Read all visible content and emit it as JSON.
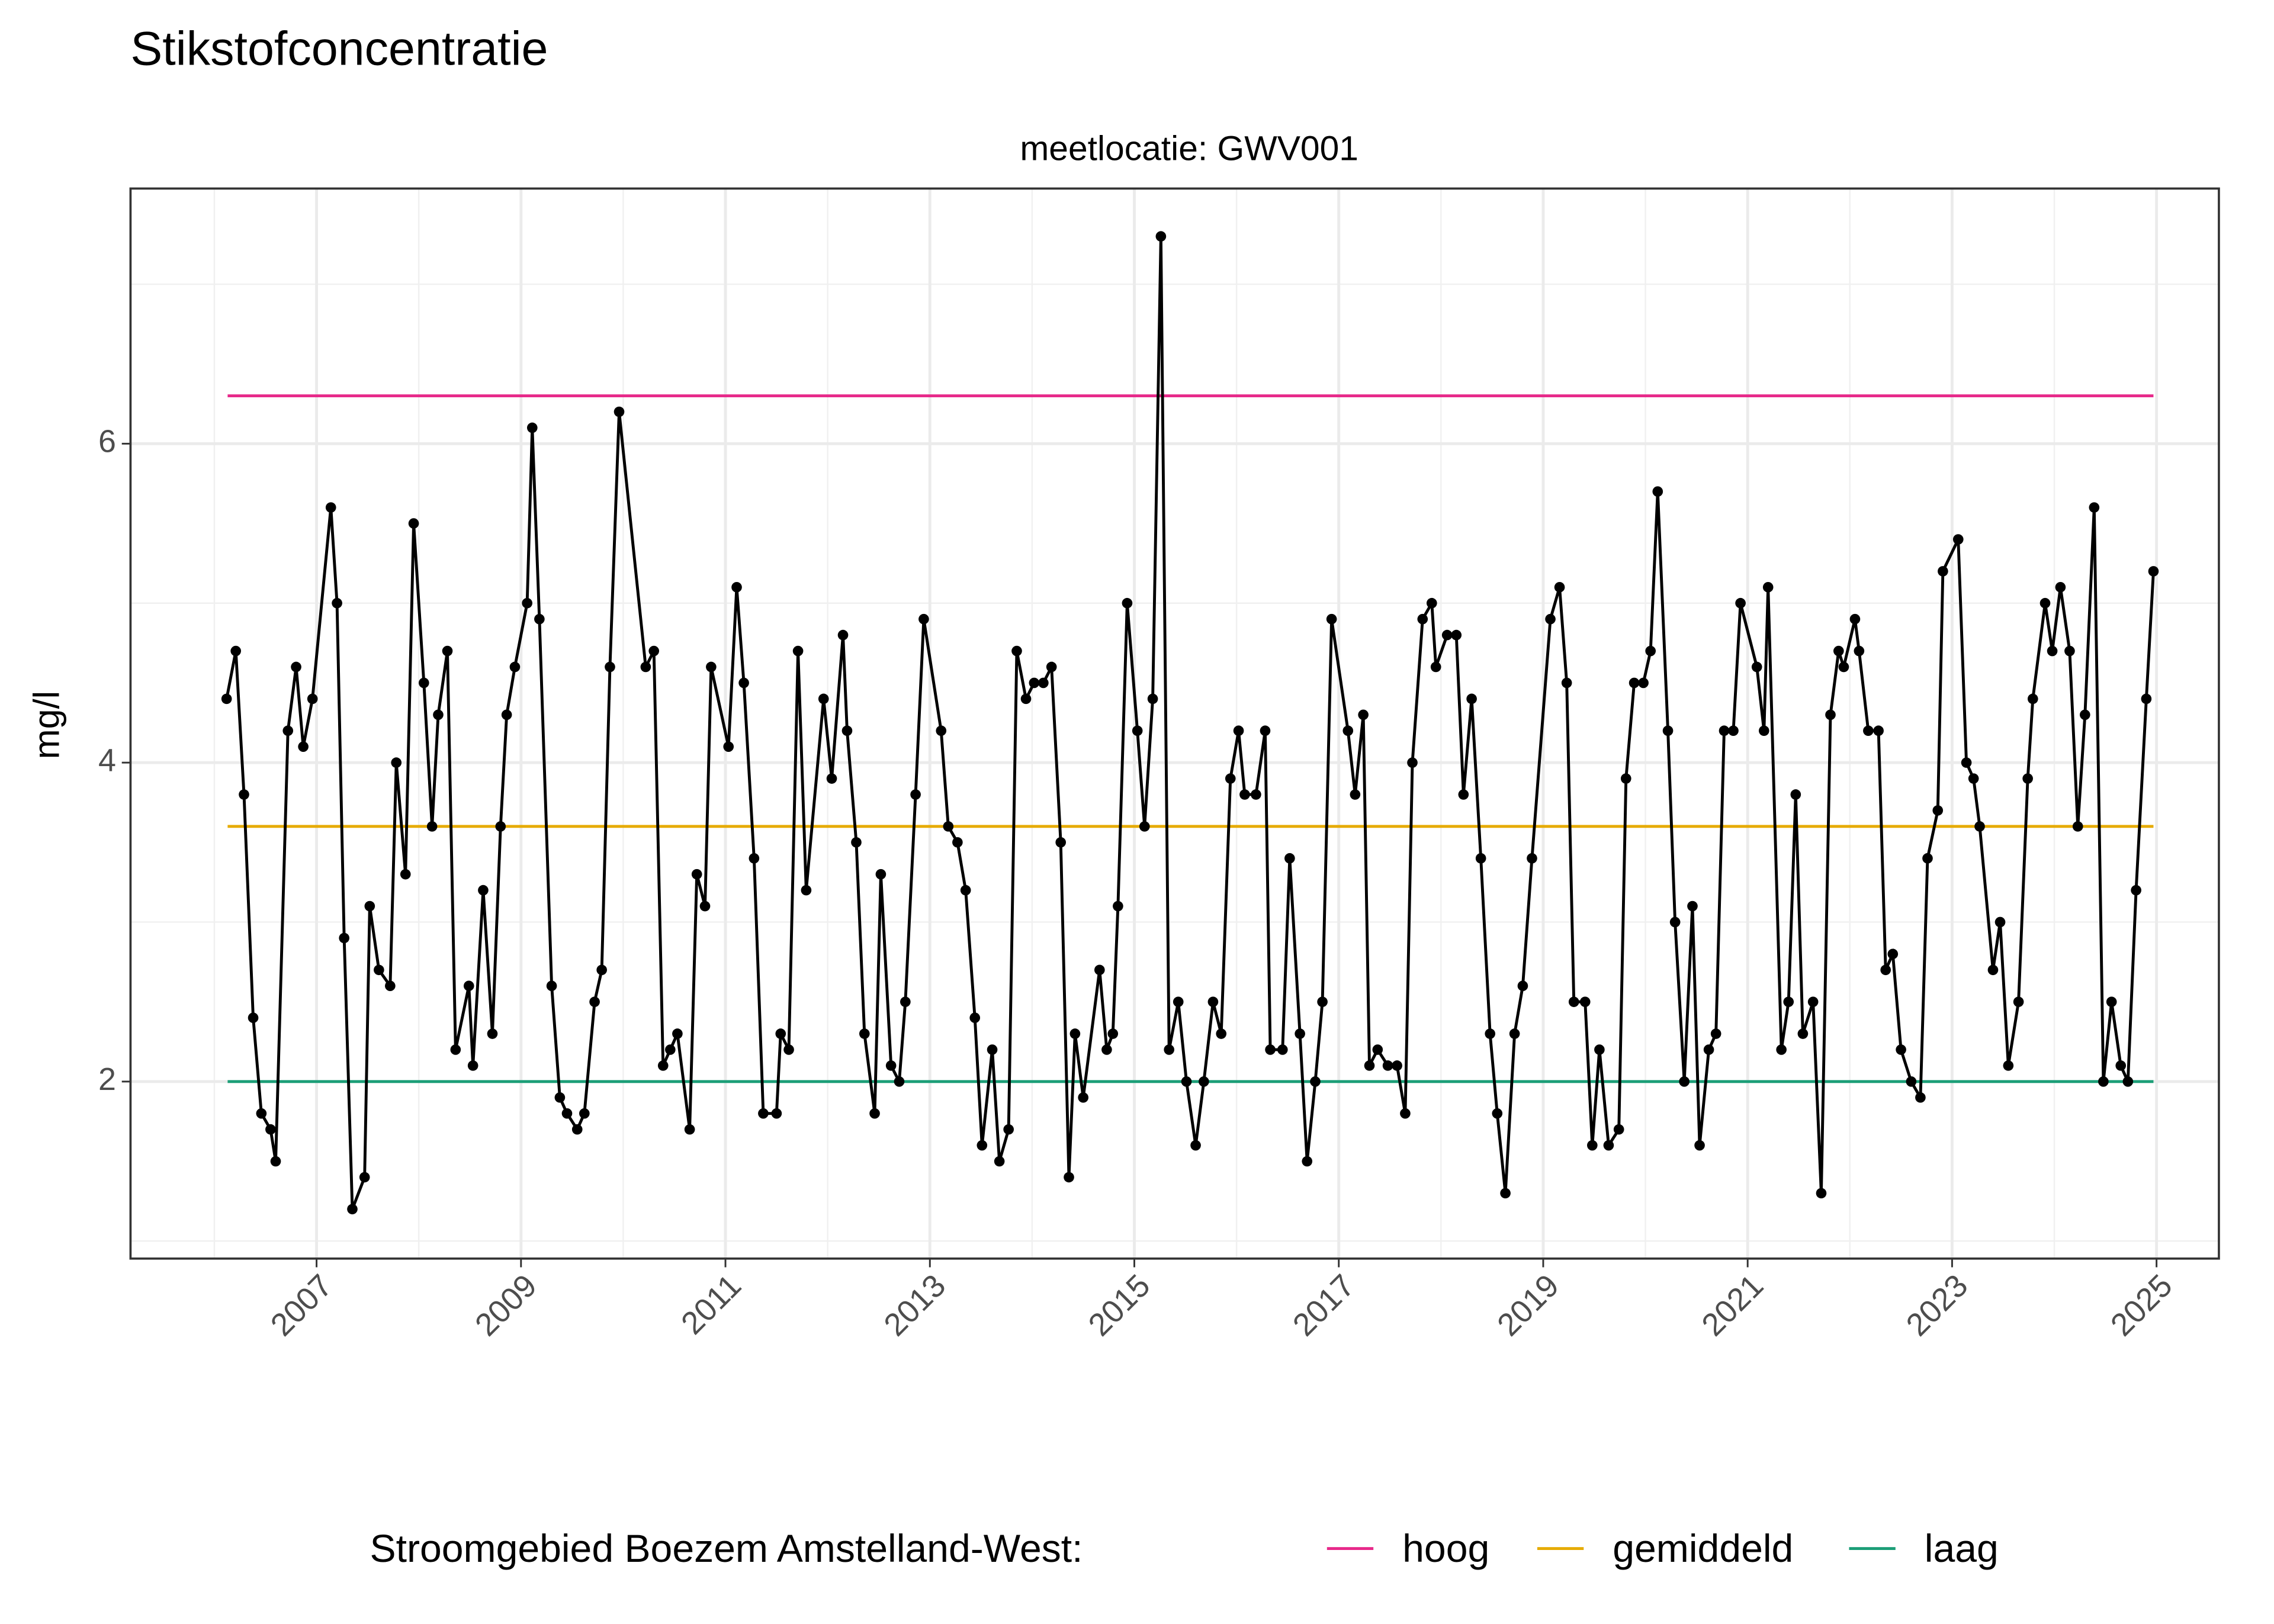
{
  "chart_data": {
    "type": "line",
    "title": "Stikstofconcentratie",
    "subtitle": "meetlocatie: GWV001",
    "ylabel": "mg/l",
    "legend_title": "Stroomgebied Boezem Amstelland-West:",
    "legend": "bottom",
    "grid": true,
    "color": "#000000",
    "xlim": [
      2005.18,
      2025.61
    ],
    "ylim": [
      0.89,
      7.6
    ],
    "xticks": [
      2007,
      2009,
      2011,
      2013,
      2015,
      2017,
      2019,
      2021,
      2023,
      2025
    ],
    "yticks": [
      2,
      4,
      6
    ],
    "xminor_ticks": [
      2006,
      2008,
      2010,
      2012,
      2014,
      2016,
      2018,
      2020,
      2022,
      2024
    ],
    "yminor_ticks": [
      1,
      3,
      5,
      7
    ],
    "x": [
      2006.12,
      2006.21,
      2006.29,
      2006.38,
      2006.46,
      2006.55,
      2006.6,
      2006.72,
      2006.8,
      2006.87,
      2006.96,
      2007.14,
      2007.2,
      2007.27,
      2007.35,
      2007.47,
      2007.52,
      2007.61,
      2007.72,
      2007.78,
      2007.87,
      2007.95,
      2008.05,
      2008.13,
      2008.19,
      2008.28,
      2008.36,
      2008.49,
      2008.53,
      2008.63,
      2008.72,
      2008.8,
      2008.86,
      2008.94,
      2009.06,
      2009.11,
      2009.18,
      2009.3,
      2009.38,
      2009.45,
      2009.55,
      2009.62,
      2009.72,
      2009.79,
      2009.87,
      2009.96,
      2010.22,
      2010.3,
      2010.39,
      2010.46,
      2010.53,
      2010.65,
      2010.72,
      2010.8,
      2010.86,
      2011.03,
      2011.11,
      2011.18,
      2011.28,
      2011.37,
      2011.5,
      2011.54,
      2011.62,
      2011.71,
      2011.79,
      2011.96,
      2012.04,
      2012.15,
      2012.19,
      2012.28,
      2012.36,
      2012.46,
      2012.52,
      2012.62,
      2012.7,
      2012.76,
      2012.86,
      2012.94,
      2013.11,
      2013.18,
      2013.27,
      2013.35,
      2013.44,
      2013.51,
      2013.61,
      2013.68,
      2013.77,
      2013.85,
      2013.94,
      2014.02,
      2014.11,
      2014.19,
      2014.28,
      2014.36,
      2014.42,
      2014.5,
      2014.66,
      2014.73,
      2014.79,
      2014.84,
      2014.93,
      2015.03,
      2015.1,
      2015.18,
      2015.26,
      2015.34,
      2015.43,
      2015.51,
      2015.6,
      2015.68,
      2015.77,
      2015.85,
      2015.94,
      2016.02,
      2016.08,
      2016.19,
      2016.28,
      2016.33,
      2016.45,
      2016.52,
      2016.62,
      2016.69,
      2016.77,
      2016.84,
      2016.93,
      2017.09,
      2017.16,
      2017.24,
      2017.3,
      2017.38,
      2017.48,
      2017.57,
      2017.65,
      2017.72,
      2017.82,
      2017.91,
      2017.95,
      2018.06,
      2018.15,
      2018.22,
      2018.3,
      2018.39,
      2018.48,
      2018.55,
      2018.63,
      2018.72,
      2018.8,
      2018.89,
      2019.07,
      2019.16,
      2019.23,
      2019.3,
      2019.41,
      2019.48,
      2019.55,
      2019.64,
      2019.74,
      2019.81,
      2019.89,
      2019.98,
      2020.05,
      2020.12,
      2020.22,
      2020.29,
      2020.38,
      2020.46,
      2020.53,
      2020.62,
      2020.69,
      2020.77,
      2020.86,
      2020.93,
      2021.09,
      2021.16,
      2021.2,
      2021.33,
      2021.4,
      2021.47,
      2021.54,
      2021.64,
      2021.72,
      2021.81,
      2021.89,
      2021.94,
      2022.05,
      2022.09,
      2022.18,
      2022.28,
      2022.35,
      2022.42,
      2022.5,
      2022.6,
      2022.69,
      2022.76,
      2022.86,
      2022.91,
      2023.06,
      2023.14,
      2023.21,
      2023.27,
      2023.4,
      2023.47,
      2023.55,
      2023.65,
      2023.74,
      2023.79,
      2023.91,
      2023.98,
      2024.06,
      2024.15,
      2024.23,
      2024.3,
      2024.39,
      2024.48,
      2024.56,
      2024.65,
      2024.72,
      2024.8,
      2024.9,
      2024.97
    ],
    "values": [
      4.4,
      4.7,
      3.8,
      2.4,
      1.8,
      1.7,
      1.5,
      4.2,
      4.6,
      4.1,
      4.4,
      5.6,
      5.0,
      2.9,
      1.2,
      1.4,
      3.1,
      2.7,
      2.6,
      4.0,
      3.3,
      5.5,
      4.5,
      3.6,
      4.3,
      4.7,
      2.2,
      2.6,
      2.1,
      3.2,
      2.3,
      3.6,
      4.3,
      4.6,
      5.0,
      6.1,
      4.9,
      2.6,
      1.9,
      1.8,
      1.7,
      1.8,
      2.5,
      2.7,
      4.6,
      6.2,
      4.6,
      4.7,
      2.1,
      2.2,
      2.3,
      1.7,
      3.3,
      3.1,
      4.6,
      4.1,
      5.1,
      4.5,
      3.4,
      1.8,
      1.8,
      2.3,
      2.2,
      4.7,
      3.2,
      4.4,
      3.9,
      4.8,
      4.2,
      3.5,
      2.3,
      1.8,
      3.3,
      2.1,
      2.0,
      2.5,
      3.8,
      4.9,
      4.2,
      3.6,
      3.5,
      3.2,
      2.4,
      1.6,
      2.2,
      1.5,
      1.7,
      4.7,
      4.4,
      4.5,
      4.5,
      4.6,
      3.5,
      1.4,
      2.3,
      1.9,
      2.7,
      2.2,
      2.3,
      3.1,
      5.0,
      4.2,
      3.6,
      4.4,
      7.3,
      2.2,
      2.5,
      2.0,
      1.6,
      2.0,
      2.5,
      2.3,
      3.9,
      4.2,
      3.8,
      3.8,
      4.2,
      2.2,
      2.2,
      3.4,
      2.3,
      1.5,
      2.0,
      2.5,
      4.9,
      4.2,
      3.8,
      4.3,
      2.1,
      2.2,
      2.1,
      2.1,
      1.8,
      4.0,
      4.9,
      5.0,
      4.6,
      4.8,
      4.8,
      3.8,
      4.4,
      3.4,
      2.3,
      1.8,
      1.3,
      2.3,
      2.6,
      3.4,
      4.9,
      5.1,
      4.5,
      2.5,
      2.5,
      1.6,
      2.2,
      1.6,
      1.7,
      3.9,
      4.5,
      4.5,
      4.7,
      5.7,
      4.2,
      3.0,
      2.0,
      3.1,
      1.6,
      2.2,
      2.3,
      4.2,
      4.2,
      5.0,
      4.6,
      4.2,
      5.1,
      2.2,
      2.5,
      3.8,
      2.3,
      2.5,
      1.3,
      4.3,
      4.7,
      4.6,
      4.9,
      4.7,
      4.2,
      4.2,
      2.7,
      2.8,
      2.2,
      2.0,
      1.9,
      3.4,
      3.7,
      5.2,
      5.4,
      4.0,
      3.9,
      3.6,
      2.7,
      3.0,
      2.1,
      2.5,
      3.9,
      4.4,
      5.0,
      4.7,
      5.1,
      4.7,
      3.6,
      4.3,
      5.6,
      2.0,
      2.5,
      2.1,
      2.0,
      3.2,
      4.4,
      5.2
    ],
    "series": [
      {
        "name": "hoog",
        "color": "#e7298a",
        "x": [
          2006.13,
          2024.97
        ],
        "values": [
          6.3,
          6.3
        ]
      },
      {
        "name": "gemiddeld",
        "color": "#e6ab02",
        "x": [
          2006.13,
          2024.97
        ],
        "values": [
          3.6,
          3.6
        ]
      },
      {
        "name": "laag",
        "color": "#1b9e77",
        "x": [
          2006.13,
          2024.97
        ],
        "values": [
          2.0,
          2.0
        ]
      }
    ]
  }
}
